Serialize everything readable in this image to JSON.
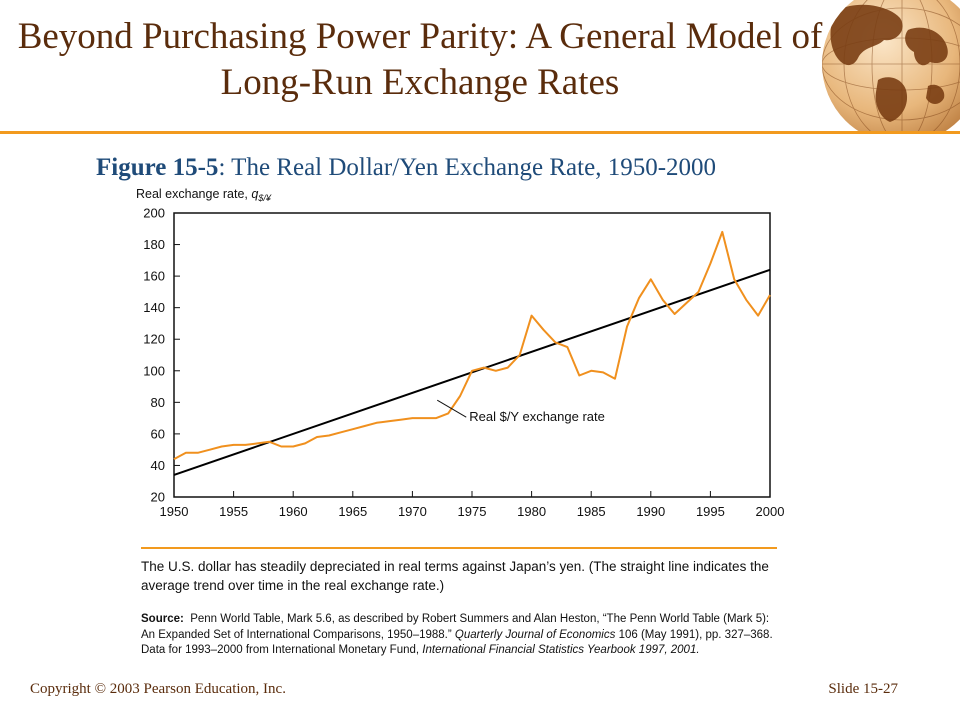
{
  "slide": {
    "title": "Beyond Purchasing Power Parity: A General Model of Long-Run Exchange Rates",
    "figure_label": "Figure 15-5",
    "figure_title": ": The Real Dollar/Yen Exchange Rate, 1950-2000",
    "note": "The U.S. dollar has steadily depreciated in real terms against Japan’s yen. (The straight line indicates the average trend over time in the real exchange rate.)",
    "source_label": "Source:",
    "source_part1": "Penn World Table, Mark 5.6, as described by Robert Summers and Alan Heston, “The Penn World Table (Mark 5): An Expanded Set of International Comparisons, 1950–1988.”",
    "source_journal": "Quarterly Journal of Economics",
    "source_part2": "106 (May 1991), pp. 327–368. Data for 1993–2000 from International Monetary Fund,",
    "source_book": "International Financial Statistics Yearbook 1997, 2001.",
    "copyright": "Copyright © 2003 Pearson Education, Inc.",
    "slide_number": "Slide 15-27"
  },
  "colors": {
    "title": "#5a2c0c",
    "accent": "#f29a1e",
    "figure_caption": "#1f4b79",
    "series": "#f0901e",
    "trend": "#000000"
  },
  "chart_data": {
    "type": "line",
    "ylabel_prefix": "Real exchange rate, ",
    "ylabel_symbol": "q",
    "ylabel_subscript": "$/¥",
    "xlim": [
      1950,
      2000
    ],
    "ylim": [
      20,
      200
    ],
    "xticks": [
      1950,
      1955,
      1960,
      1965,
      1970,
      1975,
      1980,
      1985,
      1990,
      1995,
      2000
    ],
    "yticks": [
      20,
      40,
      60,
      80,
      100,
      120,
      140,
      160,
      180,
      200
    ],
    "grid": false,
    "series": [
      {
        "name": "Real $/Y exchange rate",
        "x": [
          1950,
          1951,
          1952,
          1953,
          1954,
          1955,
          1956,
          1957,
          1958,
          1959,
          1960,
          1961,
          1962,
          1963,
          1964,
          1965,
          1966,
          1967,
          1968,
          1969,
          1970,
          1971,
          1972,
          1973,
          1974,
          1975,
          1976,
          1977,
          1978,
          1979,
          1980,
          1981,
          1982,
          1983,
          1984,
          1985,
          1986,
          1987,
          1988,
          1989,
          1990,
          1991,
          1992,
          1993,
          1994,
          1995,
          1996,
          1997,
          1998,
          1999,
          2000
        ],
        "y": [
          44,
          48,
          48,
          50,
          52,
          53,
          53,
          54,
          55,
          52,
          52,
          54,
          58,
          59,
          61,
          63,
          65,
          67,
          68,
          69,
          70,
          70,
          70,
          73,
          84,
          100,
          102,
          100,
          102,
          110,
          135,
          126,
          118,
          115,
          97,
          100,
          99,
          95,
          128,
          146,
          158,
          145,
          136,
          143,
          150,
          168,
          188,
          158,
          145,
          135,
          148
        ]
      }
    ],
    "trend": {
      "name": "average trend",
      "x": [
        1950,
        2000
      ],
      "y": [
        34,
        164
      ]
    },
    "annotations": [
      {
        "text": "Real $/Y exchange rate",
        "x": 1972,
        "y": 82
      }
    ]
  }
}
